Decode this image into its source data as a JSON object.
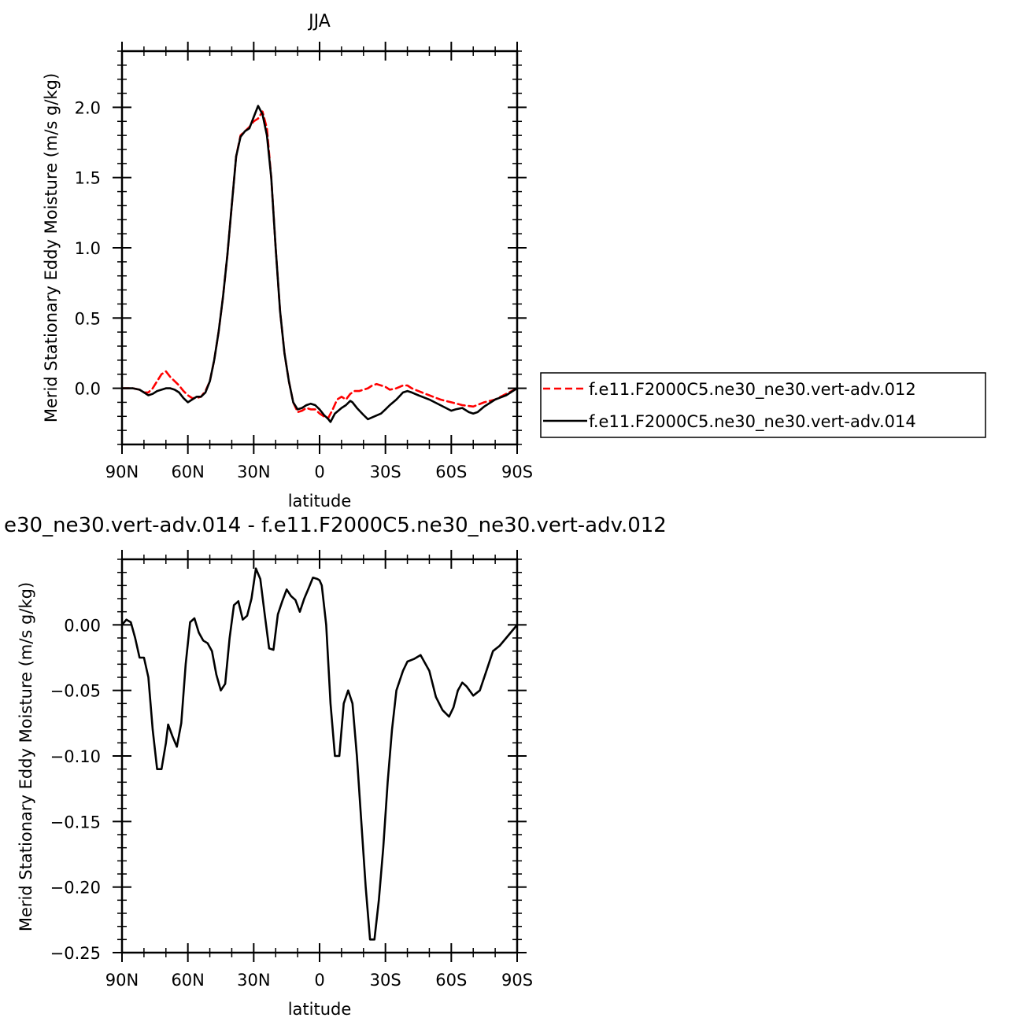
{
  "chart_data": [
    {
      "type": "line",
      "title": "JJA",
      "xlabel": "latitude",
      "ylabel": "Merid Stationary Eddy Moisture (m/s g/kg)",
      "xlim": [
        90,
        -90
      ],
      "ylim": [
        -0.4,
        2.4
      ],
      "x_ticks": [
        90,
        60,
        30,
        0,
        -30,
        -60,
        -90
      ],
      "x_tick_labels": [
        "90N",
        "60N",
        "30N",
        "0",
        "30S",
        "60S",
        "90S"
      ],
      "y_ticks": [
        0.0,
        0.5,
        1.0,
        1.5,
        2.0
      ],
      "y_tick_labels": [
        "0.0",
        "0.5",
        "1.0",
        "1.5",
        "2.0"
      ],
      "legend_position": "right",
      "series": [
        {
          "name": "f.e11.F2000C5.ne30_ne30.vert-adv.012",
          "color": "#ff0000",
          "dash": "dashed",
          "x": [
            90,
            85,
            82,
            80,
            78,
            76,
            74,
            72,
            70,
            68,
            66,
            64,
            62,
            60,
            58,
            56,
            54,
            52,
            50,
            48,
            46,
            44,
            42,
            40,
            38,
            36,
            34,
            32,
            30,
            28,
            26,
            24,
            22,
            20,
            18,
            16,
            14,
            12,
            10,
            8,
            6,
            4,
            2,
            0,
            -2,
            -4,
            -6,
            -8,
            -10,
            -12,
            -14,
            -16,
            -18,
            -20,
            -22,
            -24,
            -26,
            -28,
            -30,
            -32,
            -35,
            -38,
            -40,
            -42,
            -45,
            -50,
            -55,
            -60,
            -65,
            -70,
            -75,
            -80,
            -85,
            -90
          ],
          "y": [
            0.0,
            0.0,
            -0.01,
            -0.03,
            -0.03,
            0.0,
            0.05,
            0.1,
            0.12,
            0.08,
            0.05,
            0.02,
            -0.02,
            -0.05,
            -0.07,
            -0.07,
            -0.06,
            -0.02,
            0.05,
            0.2,
            0.4,
            0.65,
            0.95,
            1.3,
            1.65,
            1.8,
            1.83,
            1.86,
            1.9,
            1.92,
            1.97,
            1.85,
            1.5,
            1.0,
            0.55,
            0.25,
            0.05,
            -0.1,
            -0.17,
            -0.16,
            -0.14,
            -0.15,
            -0.15,
            -0.18,
            -0.2,
            -0.21,
            -0.15,
            -0.08,
            -0.06,
            -0.08,
            -0.04,
            -0.02,
            -0.02,
            -0.01,
            0.0,
            0.02,
            0.03,
            0.02,
            0.01,
            -0.01,
            0.0,
            0.02,
            0.02,
            0.0,
            -0.02,
            -0.05,
            -0.08,
            -0.1,
            -0.12,
            -0.13,
            -0.1,
            -0.08,
            -0.04,
            0.0
          ]
        },
        {
          "name": "f.e11.F2000C5.ne30_ne30.vert-adv.014",
          "color": "#000000",
          "dash": "solid",
          "x": [
            90,
            85,
            82,
            80,
            78,
            76,
            74,
            72,
            70,
            68,
            66,
            64,
            62,
            60,
            58,
            56,
            54,
            52,
            50,
            48,
            46,
            44,
            42,
            40,
            38,
            36,
            34,
            32,
            30,
            28,
            27,
            26,
            24,
            22,
            20,
            18,
            16,
            14,
            12,
            10,
            8,
            6,
            4,
            2,
            0,
            -2,
            -4,
            -5,
            -7,
            -10,
            -12,
            -14,
            -15,
            -17,
            -20,
            -22,
            -25,
            -28,
            -30,
            -32,
            -35,
            -38,
            -40,
            -42,
            -45,
            -50,
            -55,
            -60,
            -62,
            -65,
            -68,
            -70,
            -72,
            -75,
            -80,
            -85,
            -90
          ],
          "y": [
            0.0,
            0.0,
            -0.01,
            -0.03,
            -0.05,
            -0.04,
            -0.02,
            -0.01,
            0.0,
            0.0,
            -0.01,
            -0.03,
            -0.07,
            -0.1,
            -0.08,
            -0.06,
            -0.06,
            -0.03,
            0.05,
            0.2,
            0.4,
            0.65,
            0.95,
            1.3,
            1.65,
            1.79,
            1.83,
            1.85,
            1.93,
            2.01,
            1.98,
            1.95,
            1.8,
            1.5,
            1.0,
            0.55,
            0.25,
            0.05,
            -0.1,
            -0.15,
            -0.14,
            -0.12,
            -0.11,
            -0.12,
            -0.15,
            -0.19,
            -0.22,
            -0.24,
            -0.18,
            -0.14,
            -0.12,
            -0.09,
            -0.1,
            -0.14,
            -0.19,
            -0.22,
            -0.2,
            -0.18,
            -0.15,
            -0.12,
            -0.08,
            -0.03,
            -0.02,
            -0.03,
            -0.05,
            -0.08,
            -0.12,
            -0.16,
            -0.15,
            -0.14,
            -0.17,
            -0.18,
            -0.17,
            -0.13,
            -0.08,
            -0.05,
            0.0
          ]
        }
      ]
    },
    {
      "type": "line",
      "title": "e30_ne30.vert-adv.014 - f.e11.F2000C5.ne30_ne30.vert-adv.012",
      "xlabel": "latitude",
      "ylabel": "Merid Stationary Eddy Moisture (m/s g/kg)",
      "xlim": [
        90,
        -90
      ],
      "ylim": [
        -0.25,
        0.05
      ],
      "x_ticks": [
        90,
        60,
        30,
        0,
        -30,
        -60,
        -90
      ],
      "x_tick_labels": [
        "90N",
        "60N",
        "30N",
        "0",
        "30S",
        "60S",
        "90S"
      ],
      "y_ticks": [
        0.0,
        -0.05,
        -0.1,
        -0.15,
        -0.2,
        -0.25
      ],
      "y_tick_labels": [
        "0.00",
        "−0.05",
        "−0.10",
        "−0.15",
        "−0.20",
        "−0.25"
      ],
      "series": [
        {
          "color": "#000000",
          "dash": "solid",
          "x": [
            90,
            88,
            86,
            84,
            82,
            80,
            78,
            76,
            74,
            72,
            70,
            69,
            67,
            65,
            63,
            61,
            59,
            57,
            55,
            53,
            51,
            49,
            47,
            45,
            43,
            41,
            39,
            37,
            35,
            33,
            31,
            29,
            27,
            25,
            23,
            21,
            19,
            17,
            15,
            13,
            11,
            9,
            7,
            5,
            3,
            1,
            0,
            -1,
            -3,
            -5,
            -7,
            -9,
            -11,
            -13,
            -15,
            -17,
            -19,
            -21,
            -23,
            -25,
            -27,
            -29,
            -31,
            -33,
            -35,
            -38,
            -40,
            -43,
            -46,
            -50,
            -53,
            -56,
            -59,
            -61,
            -63,
            -65,
            -67,
            -70,
            -73,
            -76,
            -79,
            -82,
            -85,
            -88,
            -90
          ],
          "y": [
            0.0,
            0.004,
            0.002,
            -0.01,
            -0.025,
            -0.025,
            -0.04,
            -0.08,
            -0.11,
            -0.11,
            -0.09,
            -0.076,
            -0.085,
            -0.093,
            -0.075,
            -0.03,
            0.002,
            0.005,
            -0.006,
            -0.012,
            -0.014,
            -0.02,
            -0.038,
            -0.05,
            -0.045,
            -0.01,
            0.015,
            0.018,
            0.004,
            0.007,
            0.02,
            0.043,
            0.035,
            0.008,
            -0.018,
            -0.019,
            0.008,
            0.018,
            0.027,
            0.022,
            0.019,
            0.01,
            0.02,
            0.028,
            0.036,
            0.035,
            0.034,
            0.03,
            0.0,
            -0.06,
            -0.1,
            -0.1,
            -0.06,
            -0.05,
            -0.06,
            -0.1,
            -0.15,
            -0.2,
            -0.24,
            -0.24,
            -0.21,
            -0.17,
            -0.12,
            -0.08,
            -0.05,
            -0.035,
            -0.028,
            -0.026,
            -0.023,
            -0.035,
            -0.055,
            -0.065,
            -0.07,
            -0.063,
            -0.05,
            -0.044,
            -0.047,
            -0.054,
            -0.05,
            -0.035,
            -0.02,
            -0.016,
            -0.01,
            -0.004,
            0.0
          ]
        }
      ]
    }
  ]
}
